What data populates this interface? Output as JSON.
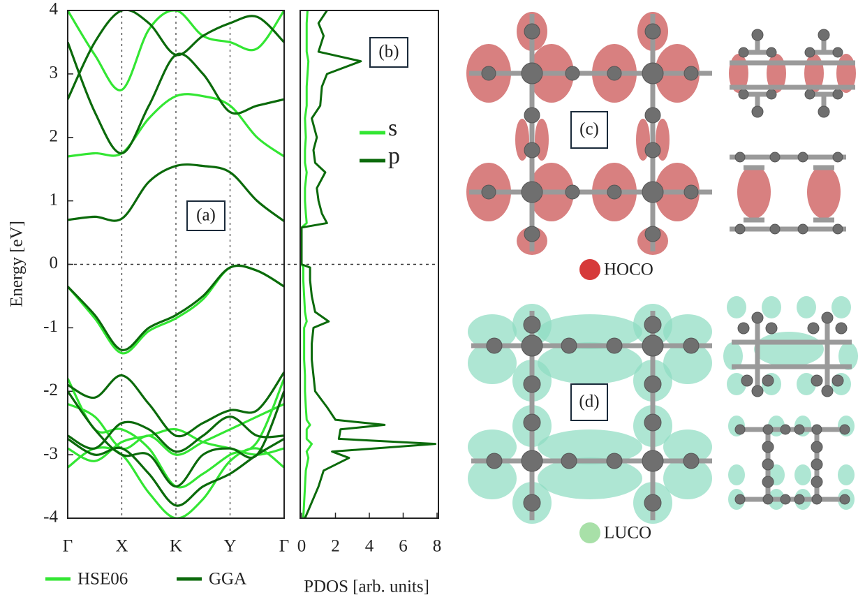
{
  "chart_data": [
    {
      "type": "line",
      "ylabel": "Energy [eV]",
      "annotation": "(a)",
      "x": [
        0,
        0.5,
        1,
        1.5,
        2,
        2.5,
        3,
        3.5,
        4
      ],
      "xlim": [
        0,
        4
      ],
      "xticks": [
        {
          "value": 0,
          "label": "Γ"
        },
        {
          "value": 1,
          "label": "X"
        },
        {
          "value": 2,
          "label": "K"
        },
        {
          "value": 3,
          "label": "Y"
        },
        {
          "value": 4,
          "label": "Γ"
        }
      ],
      "ylim": [
        -4,
        4
      ],
      "yticks": [
        -4,
        -3,
        -2,
        -1,
        0,
        1,
        2,
        3,
        4
      ],
      "xgrid": true,
      "hline": 0,
      "series": [
        {
          "name": "HSE06",
          "color": "#33e633",
          "values": [
            [
              -0.35,
              -0.85,
              -1.4,
              -1.05,
              -0.85,
              -0.55,
              -0.05,
              -0.1,
              -0.35
            ],
            [
              1.7,
              1.75,
              1.75,
              2.3,
              2.65,
              2.65,
              2.5,
              2.0,
              1.7
            ],
            [
              4,
              3.3,
              2.75,
              3.7,
              4,
              3.6,
              3.5,
              3.4,
              4
            ],
            [
              -1.8,
              -2.6,
              -2.6,
              -2.9,
              -3.5,
              -3.3,
              -3.0,
              -2.8,
              -1.8
            ],
            [
              -2.2,
              -2.4,
              -2.9,
              -2.7,
              -3.0,
              -2.8,
              -2.6,
              -2.4,
              -2.2
            ],
            [
              -3.2,
              -2.9,
              -3.0,
              -3.6,
              -4,
              -3.7,
              -3.1,
              -2.9,
              -3.2
            ],
            [
              -2.9,
              -3.1,
              -2.8,
              -2.7,
              -2.6,
              -2.8,
              -2.9,
              -3.0,
              -2.9
            ]
          ]
        },
        {
          "name": "GGA",
          "color": "#0b6a0b",
          "values": [
            [
              -0.35,
              -0.8,
              -1.35,
              -1.0,
              -0.8,
              -0.5,
              -0.05,
              -0.1,
              -0.35
            ],
            [
              0.7,
              0.75,
              0.72,
              1.3,
              1.55,
              1.55,
              1.45,
              1.0,
              0.68
            ],
            [
              3.5,
              2.4,
              1.75,
              2.5,
              3.3,
              3.0,
              2.4,
              2.5,
              2.6
            ],
            [
              2.6,
              3.5,
              4,
              3.8,
              3.3,
              3.6,
              3.8,
              3.9,
              3.5
            ],
            [
              -1.9,
              -2.1,
              -1.75,
              -2.2,
              -2.7,
              -2.5,
              -2.3,
              -2.3,
              -1.7
            ],
            [
              -2.7,
              -2.9,
              -2.5,
              -2.6,
              -2.95,
              -2.7,
              -2.4,
              -2.7,
              -2.7
            ],
            [
              -2.0,
              -2.6,
              -3.0,
              -3.0,
              -3.5,
              -3.0,
              -2.9,
              -3.0,
              -2.0
            ],
            [
              -2.75,
              -3.0,
              -2.9,
              -3.3,
              -3.8,
              -3.5,
              -3.3,
              -3.0,
              -2.75
            ]
          ]
        }
      ]
    },
    {
      "type": "line",
      "orientation": "horizontal",
      "xlabel": "PDOS [arb. units]",
      "annotation": "(b)",
      "xlim": [
        0,
        8
      ],
      "xticks": [
        0,
        2,
        4,
        6,
        8
      ],
      "ylim": [
        -4,
        4
      ],
      "y": [
        -4,
        -3.75,
        -3.5,
        -3.25,
        -3.05,
        -2.95,
        -2.83,
        -2.75,
        -2.6,
        -2.53,
        -2.45,
        -2.25,
        -2,
        -1.75,
        -1.5,
        -1.25,
        -1,
        -0.9,
        -0.75,
        -0.5,
        -0.25,
        -0.05,
        0,
        0.58,
        0.65,
        0.8,
        1,
        1.2,
        1.45,
        1.6,
        1.8,
        2,
        2.3,
        2.5,
        2.8,
        3,
        3.2,
        3.35,
        3.6,
        3.8,
        4
      ],
      "series": [
        {
          "name": "s",
          "color": "#33e633",
          "values": [
            0.1,
            0.15,
            0.2,
            0.25,
            0.4,
            0.3,
            0.6,
            0.3,
            0.3,
            0.5,
            0.3,
            0.25,
            0.2,
            0.2,
            0.15,
            0.15,
            0.15,
            0.3,
            0.2,
            0.15,
            0.1,
            0.1,
            0,
            0,
            0.3,
            0.25,
            0.2,
            0.2,
            0.3,
            0.2,
            0.2,
            0.25,
            0.2,
            0.3,
            0.3,
            0.35,
            0.4,
            0.3,
            0.3,
            0.3,
            0.35
          ]
        },
        {
          "name": "p",
          "color": "#0b6a0b",
          "values": [
            0.2,
            0.6,
            1.0,
            1.3,
            2.8,
            1.8,
            7.9,
            2.2,
            2.3,
            4.9,
            2.0,
            1.5,
            0.8,
            0.7,
            0.6,
            0.6,
            0.7,
            1.6,
            0.8,
            0.6,
            0.5,
            0.5,
            0,
            0,
            1.5,
            1.2,
            1.0,
            0.9,
            1.4,
            0.8,
            0.7,
            0.9,
            0.6,
            1.1,
            1.2,
            1.5,
            3.5,
            1.0,
            1.3,
            1.0,
            1.5
          ]
        }
      ]
    }
  ],
  "images": [
    {
      "label": "(c)",
      "caption": "HOCO",
      "color": "#d63a3a"
    },
    {
      "label": "(d)",
      "caption": "LUCO",
      "color": "#a8e0a8"
    }
  ]
}
